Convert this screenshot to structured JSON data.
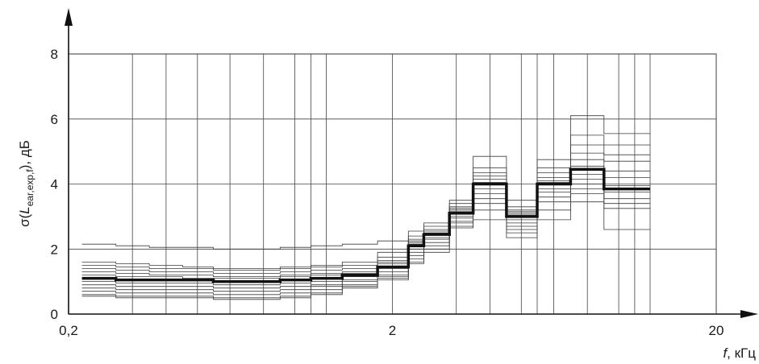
{
  "chart_data": {
    "type": "line",
    "xscale": "log",
    "xlim": [
      0.2,
      20
    ],
    "ylim": [
      0,
      8
    ],
    "grid": true,
    "x_tick_labels": [
      {
        "value": 0.2,
        "label": "0,2"
      },
      {
        "value": 2,
        "label": "2"
      },
      {
        "value": 20,
        "label": "20"
      }
    ],
    "y_tick_labels": [
      {
        "value": 0,
        "label": "0"
      },
      {
        "value": 2,
        "label": "2"
      },
      {
        "value": 4,
        "label": "4"
      },
      {
        "value": 6,
        "label": "6"
      },
      {
        "value": 8,
        "label": "8"
      }
    ],
    "x_grid": [
      0.315,
      0.4,
      0.5,
      0.63,
      0.8,
      1.0,
      1.12,
      1.25,
      2.0,
      3.15,
      4.0,
      5.0,
      5.6,
      6.3,
      8.0,
      10.0,
      11.2,
      12.5,
      20.0
    ],
    "xlabel": {
      "var": "f",
      "rest": ", кГц"
    },
    "ylabel": {
      "pre": "σ(",
      "var": "L",
      "sub": "ear,exp,f",
      "post": "), дБ"
    },
    "band_edges": [
      0.22,
      0.28,
      0.355,
      0.45,
      0.56,
      0.71,
      0.9,
      1.12,
      1.4,
      1.8,
      2.24,
      2.5,
      3.0,
      3.55,
      4.5,
      5.6,
      7.1,
      9.0,
      12.5
    ],
    "series": [
      {
        "bold": true,
        "values": [
          1.1,
          1.05,
          1.05,
          1.05,
          1.0,
          1.0,
          1.05,
          1.1,
          1.2,
          1.45,
          2.1,
          2.45,
          3.1,
          4.0,
          3.0,
          4.0,
          4.45,
          3.85
        ]
      },
      {
        "bold": false,
        "values": [
          2.15,
          2.1,
          2.05,
          2.05,
          2.0,
          2.0,
          2.05,
          2.1,
          2.15,
          2.25,
          2.55,
          2.8,
          3.5,
          4.85,
          3.5,
          4.75,
          6.1,
          5.55
        ]
      },
      {
        "bold": false,
        "values": [
          1.6,
          1.55,
          1.5,
          1.45,
          1.4,
          1.4,
          1.45,
          1.5,
          1.6,
          1.9,
          2.4,
          2.7,
          3.4,
          4.5,
          3.3,
          4.5,
          5.5,
          5.2
        ]
      },
      {
        "bold": false,
        "values": [
          1.5,
          1.45,
          1.4,
          1.4,
          1.35,
          1.35,
          1.4,
          1.45,
          1.5,
          1.75,
          2.3,
          2.6,
          3.3,
          4.35,
          3.2,
          4.35,
          5.2,
          4.9
        ]
      },
      {
        "bold": false,
        "values": [
          1.4,
          1.35,
          1.3,
          1.3,
          1.25,
          1.25,
          1.3,
          1.35,
          1.4,
          1.65,
          2.25,
          2.55,
          3.25,
          4.25,
          3.15,
          4.2,
          4.95,
          4.7
        ]
      },
      {
        "bold": false,
        "values": [
          1.3,
          1.25,
          1.2,
          1.2,
          1.15,
          1.15,
          1.2,
          1.25,
          1.3,
          1.6,
          2.2,
          2.5,
          3.2,
          4.15,
          3.1,
          4.1,
          4.75,
          4.4
        ]
      },
      {
        "bold": false,
        "values": [
          1.2,
          1.15,
          1.15,
          1.1,
          1.1,
          1.1,
          1.15,
          1.2,
          1.25,
          1.55,
          2.15,
          2.45,
          3.15,
          4.05,
          3.05,
          4.05,
          4.55,
          4.2
        ]
      },
      {
        "bold": false,
        "values": [
          1.0,
          0.95,
          0.95,
          0.95,
          0.9,
          0.9,
          0.95,
          1.0,
          1.15,
          1.4,
          2.0,
          2.35,
          3.0,
          3.85,
          2.9,
          3.85,
          4.3,
          3.95
        ]
      },
      {
        "bold": false,
        "values": [
          0.9,
          0.85,
          0.85,
          0.85,
          0.8,
          0.8,
          0.85,
          0.9,
          1.05,
          1.3,
          1.9,
          2.3,
          2.95,
          3.7,
          2.8,
          3.75,
          4.15,
          3.75
        ]
      },
      {
        "bold": false,
        "values": [
          0.8,
          0.75,
          0.75,
          0.75,
          0.7,
          0.7,
          0.75,
          0.85,
          1.0,
          1.2,
          1.8,
          2.2,
          2.85,
          3.55,
          2.7,
          3.6,
          4.0,
          3.55
        ]
      },
      {
        "bold": false,
        "values": [
          0.7,
          0.65,
          0.65,
          0.65,
          0.6,
          0.6,
          0.65,
          0.75,
          0.9,
          1.15,
          1.7,
          2.1,
          2.8,
          3.4,
          2.6,
          3.45,
          3.85,
          3.4
        ]
      },
      {
        "bold": false,
        "values": [
          0.6,
          0.55,
          0.55,
          0.55,
          0.5,
          0.5,
          0.55,
          0.65,
          0.85,
          1.1,
          1.6,
          2.0,
          2.7,
          3.2,
          2.5,
          3.2,
          3.7,
          3.25
        ]
      },
      {
        "bold": false,
        "values": [
          0.55,
          0.5,
          0.5,
          0.5,
          0.45,
          0.45,
          0.5,
          0.6,
          0.8,
          1.05,
          1.55,
          1.9,
          2.65,
          2.9,
          2.35,
          2.9,
          3.45,
          2.6
        ]
      }
    ]
  }
}
